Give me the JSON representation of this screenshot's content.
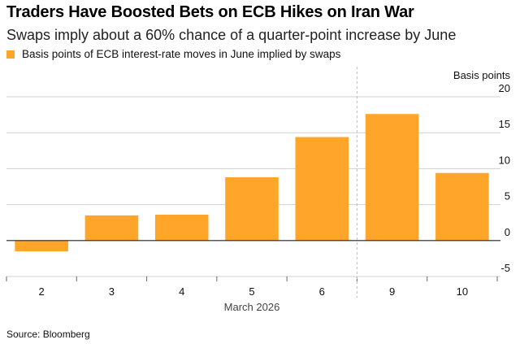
{
  "title": "Traders Have Boosted Bets on ECB Hikes on Iran War",
  "subtitle": "Swaps imply about a 60% chance of a quarter-point increase by June",
  "legend_label": "Basis points of ECB interest-rate moves in June implied by swaps",
  "source": "Source: Bloomberg",
  "colors": {
    "bar": "#ffa52a",
    "grid": "#d0d0d0",
    "zero": "#222222"
  },
  "chart_data": {
    "type": "bar",
    "title": "Traders Have Boosted Bets on ECB Hikes on Iran War",
    "categories": [
      "2",
      "3",
      "4",
      "5",
      "6",
      "9",
      "10"
    ],
    "series": [
      {
        "name": "Basis points of ECB interest-rate moves in June implied by swaps",
        "values": [
          -1.5,
          3.5,
          3.6,
          8.8,
          14.4,
          17.6,
          9.4
        ]
      }
    ],
    "xlabel": "March 2026",
    "ylabel": "Basis points",
    "ylim": [
      -5,
      20
    ],
    "yticks": [
      -5,
      0,
      5,
      10,
      15,
      20
    ],
    "ytick_labels": [
      "-5",
      "0",
      "5",
      "10",
      "15",
      "20"
    ],
    "grid": true,
    "divider_after_category": "6",
    "legend_position": "top-left"
  }
}
